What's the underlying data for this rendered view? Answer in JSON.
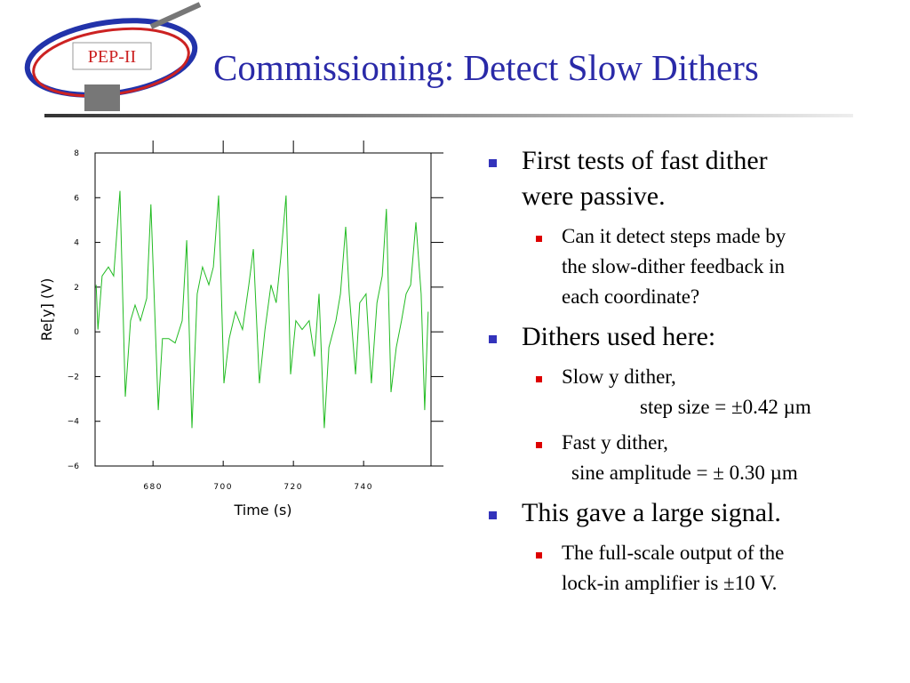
{
  "logo": "PEP-II",
  "title": "Commissioning: Detect Slow Dithers",
  "bullets": [
    {
      "lines": [
        "First tests of fast dither",
        "were passive."
      ],
      "sub": [
        {
          "lines": [
            "Can it detect steps made by",
            "the slow-dither feedback in",
            "each coordinate?"
          ]
        }
      ]
    },
    {
      "lines": [
        "Dithers used here:"
      ],
      "sub": [
        {
          "lines": [
            "Slow y dither,",
            "step size = ±0.42 µm"
          ]
        },
        {
          "lines": [
            "Fast y dither,",
            "sine amplitude = ± 0.30 µm"
          ]
        }
      ]
    },
    {
      "lines": [
        "This gave a large signal."
      ],
      "sub": [
        {
          "lines": [
            "The full-scale output of the",
            "lock-in amplifier is ±10 V."
          ]
        }
      ]
    }
  ],
  "chart_data": {
    "type": "line",
    "x_label": "Time (s)",
    "y_label": "Re[y] (V)",
    "xlim": [
      663.5,
      759.2
    ],
    "xticks": [
      680,
      700,
      720,
      740
    ],
    "ylim": [
      -6,
      8
    ],
    "yticks": [
      {
        "value": -6,
        "label": "−6"
      },
      {
        "value": -4,
        "label": "−4"
      },
      {
        "value": -2,
        "label": "−2"
      },
      0,
      2,
      4,
      6,
      8
    ],
    "x": [
      663.8,
      664.3,
      665.5,
      667.3,
      668.8,
      670.6,
      672.1,
      673.6,
      674.9,
      676.4,
      678.2,
      679.4,
      681.5,
      682.7,
      684.5,
      686.3,
      688.3,
      689.6,
      691.1,
      692.6,
      694.1,
      695.9,
      697.2,
      698.7,
      700.2,
      701.7,
      703.5,
      705.5,
      707.3,
      708.6,
      710.3,
      711.9,
      713.6,
      715.1,
      716.4,
      717.9,
      719.2,
      720.7,
      722.5,
      724.5,
      726.0,
      727.3,
      728.8,
      730.1,
      732.1,
      733.4,
      734.9,
      735.9,
      737.7,
      738.9,
      740.7,
      742.2,
      743.8,
      745.3,
      746.5,
      747.8,
      749.3,
      750.8,
      752.1,
      753.4,
      754.9,
      756.4,
      757.4,
      758.4
    ],
    "series": [
      {
        "color": "#22bb22",
        "values": [
          2.1,
          0.1,
          2.5,
          2.9,
          2.5,
          6.3,
          -2.9,
          0.5,
          1.2,
          0.5,
          1.5,
          5.7,
          -3.5,
          -0.3,
          -0.3,
          -0.5,
          0.5,
          4.1,
          -4.3,
          1.7,
          2.9,
          2.1,
          2.9,
          6.1,
          -2.3,
          -0.3,
          0.9,
          0.1,
          2.1,
          3.7,
          -2.3,
          0.1,
          2.1,
          1.3,
          3.3,
          6.1,
          -1.9,
          0.5,
          0.1,
          0.5,
          -1.1,
          1.7,
          -4.3,
          -0.7,
          0.5,
          1.7,
          4.7,
          1.7,
          -1.9,
          1.3,
          1.7,
          -2.3,
          1.3,
          2.5,
          5.5,
          -2.7,
          -0.7,
          0.5,
          1.7,
          2.1,
          4.9,
          1.7,
          -3.5,
          0.9
        ]
      }
    ]
  }
}
